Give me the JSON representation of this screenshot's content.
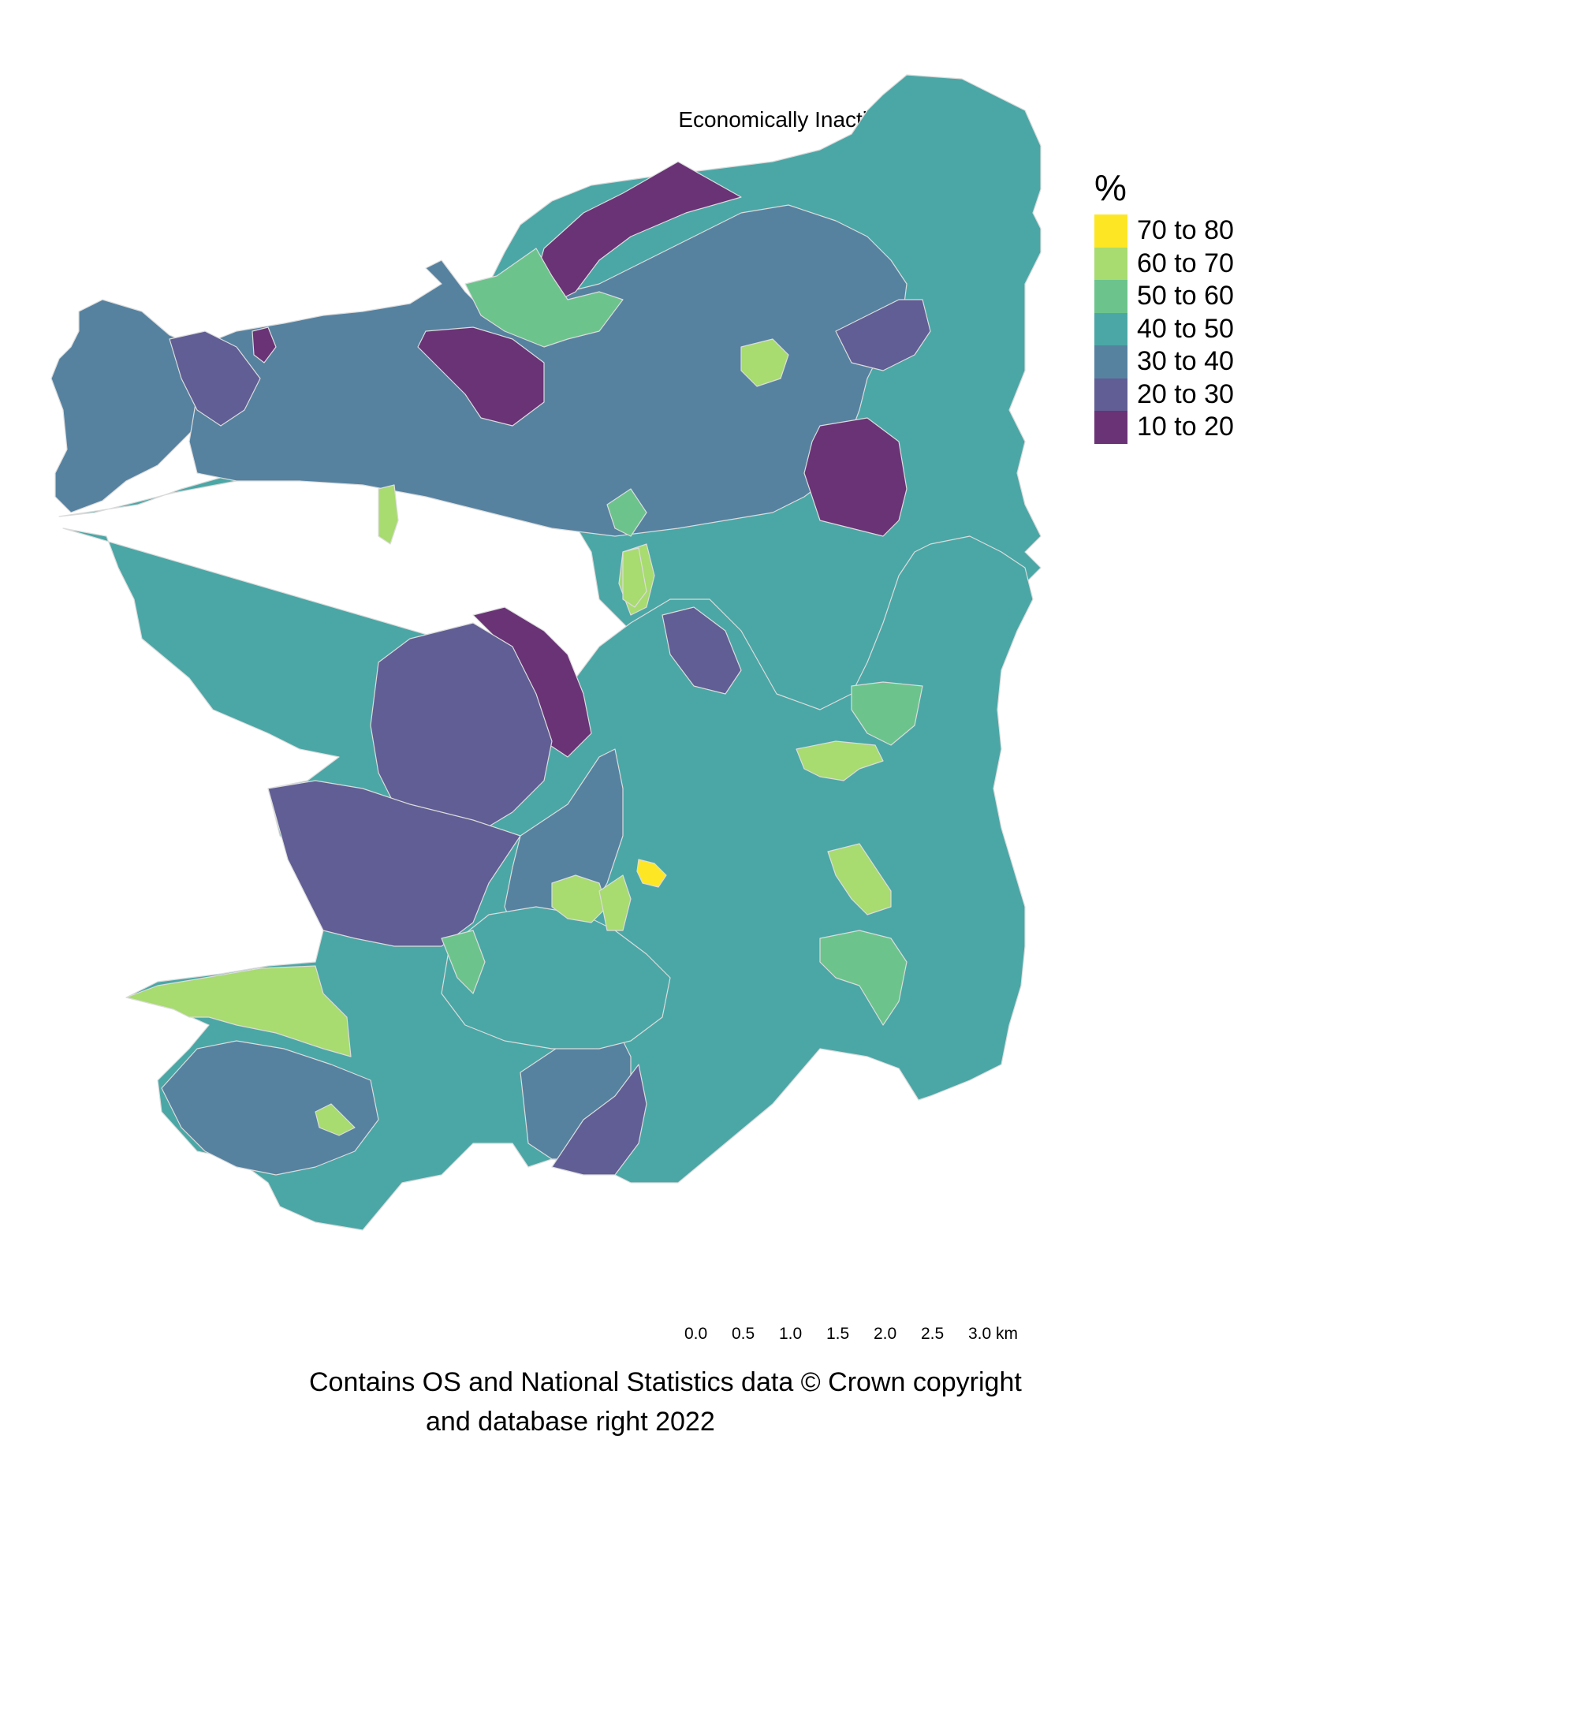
{
  "map": {
    "title": "Economically Inactive",
    "legend": {
      "title": "%",
      "items": [
        {
          "label": "70 to 80",
          "color": "#FDE725"
        },
        {
          "label": "60 to 70",
          "color": "#A8DB70"
        },
        {
          "label": "50 to 60",
          "color": "#6CC48C"
        },
        {
          "label": "40 to 50",
          "color": "#4BA7A6"
        },
        {
          "label": "30 to 40",
          "color": "#5682A0"
        },
        {
          "label": "20 to 30",
          "color": "#605E94"
        },
        {
          "label": "10 to 20",
          "color": "#6A3376"
        }
      ]
    },
    "scale_bar": {
      "ticks": [
        "0.0",
        "0.5",
        "1.0",
        "1.5",
        "2.0",
        "2.5",
        "3.0 km"
      ]
    },
    "credit": {
      "line1": "Contains OS and National Statistics data © Crown copyright",
      "line2": "and database right 2022"
    },
    "boundary_color": "#d9d9d9"
  }
}
